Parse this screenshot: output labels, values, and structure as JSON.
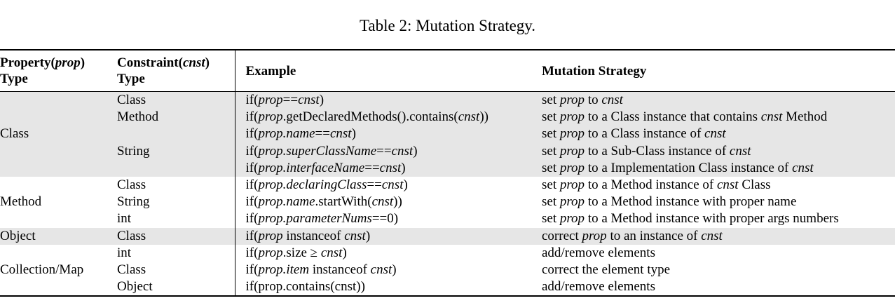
{
  "caption": "Table 2: Mutation Strategy.",
  "header": {
    "col1_line1": "Property(",
    "col1_italic": "prop",
    "col1_line1_end": ")",
    "col1_line2": "Type",
    "col2_line1": "Constraint(",
    "col2_italic": "cnst",
    "col2_line1_end": ")",
    "col2_line2": "Type",
    "col3": "Example",
    "col4": "Mutation Strategy"
  },
  "groups": [
    {
      "name": "Class",
      "shaded": true,
      "rows": [
        {
          "constraint": "Class",
          "example": [
            [
              "n",
              "if("
            ],
            [
              "i",
              "prop"
            ],
            [
              "n",
              "=="
            ],
            [
              "i",
              "cnst"
            ],
            [
              "n",
              ")"
            ]
          ],
          "strategy": [
            [
              "n",
              "set "
            ],
            [
              "i",
              "prop"
            ],
            [
              "n",
              " to "
            ],
            [
              "i",
              "cnst"
            ]
          ]
        },
        {
          "constraint": "Method",
          "example": [
            [
              "n",
              "if("
            ],
            [
              "i",
              "prop"
            ],
            [
              "n",
              ".getDeclaredMethods().contains("
            ],
            [
              "i",
              "cnst"
            ],
            [
              "n",
              "))"
            ]
          ],
          "strategy": [
            [
              "n",
              "set "
            ],
            [
              "i",
              "prop"
            ],
            [
              "n",
              " to a Class instance that contains "
            ],
            [
              "i",
              "cnst"
            ],
            [
              "n",
              " Method"
            ]
          ]
        },
        {
          "constraint": "",
          "example": [
            [
              "n",
              "if("
            ],
            [
              "i",
              "prop.name"
            ],
            [
              "n",
              "=="
            ],
            [
              "i",
              "cnst"
            ],
            [
              "n",
              ")"
            ]
          ],
          "strategy": [
            [
              "n",
              "set "
            ],
            [
              "i",
              "prop"
            ],
            [
              "n",
              " to a Class instance of "
            ],
            [
              "i",
              "cnst"
            ]
          ]
        },
        {
          "constraint": "String",
          "example": [
            [
              "n",
              "if("
            ],
            [
              "i",
              "prop.superClassName"
            ],
            [
              "n",
              "=="
            ],
            [
              "i",
              "cnst"
            ],
            [
              "n",
              ")"
            ]
          ],
          "strategy": [
            [
              "n",
              "set "
            ],
            [
              "i",
              "prop"
            ],
            [
              "n",
              " to a Sub-Class instance of "
            ],
            [
              "i",
              "cnst"
            ]
          ]
        },
        {
          "constraint": "",
          "example": [
            [
              "n",
              "if("
            ],
            [
              "i",
              "prop.interfaceName"
            ],
            [
              "n",
              "=="
            ],
            [
              "i",
              "cnst"
            ],
            [
              "n",
              ")"
            ]
          ],
          "strategy": [
            [
              "n",
              "set "
            ],
            [
              "i",
              "prop"
            ],
            [
              "n",
              " to a Implementation Class instance of "
            ],
            [
              "i",
              "cnst"
            ]
          ]
        }
      ]
    },
    {
      "name": "Method",
      "shaded": false,
      "rows": [
        {
          "constraint": "Class",
          "example": [
            [
              "n",
              "if("
            ],
            [
              "i",
              "prop.declaringClass"
            ],
            [
              "n",
              "=="
            ],
            [
              "i",
              "cnst"
            ],
            [
              "n",
              ")"
            ]
          ],
          "strategy": [
            [
              "n",
              "set "
            ],
            [
              "i",
              "prop"
            ],
            [
              "n",
              " to a Method instance of "
            ],
            [
              "i",
              "cnst"
            ],
            [
              "n",
              " Class"
            ]
          ]
        },
        {
          "constraint": "String",
          "example": [
            [
              "n",
              "if("
            ],
            [
              "i",
              "prop.name"
            ],
            [
              "n",
              ".startWith("
            ],
            [
              "i",
              "cnst"
            ],
            [
              "n",
              "))"
            ]
          ],
          "strategy": [
            [
              "n",
              "set "
            ],
            [
              "i",
              "prop"
            ],
            [
              "n",
              " to a Method instance with proper name"
            ]
          ]
        },
        {
          "constraint": "int",
          "example": [
            [
              "n",
              "if("
            ],
            [
              "i",
              "prop.parameterNums"
            ],
            [
              "n",
              "==0)"
            ]
          ],
          "strategy": [
            [
              "n",
              "set "
            ],
            [
              "i",
              "prop"
            ],
            [
              "n",
              " to a Method instance with proper args numbers"
            ]
          ]
        }
      ]
    },
    {
      "name": "Object",
      "shaded": true,
      "rows": [
        {
          "constraint": "Class",
          "example": [
            [
              "n",
              "if("
            ],
            [
              "i",
              "prop"
            ],
            [
              "n",
              " instanceof "
            ],
            [
              "i",
              "cnst"
            ],
            [
              "n",
              ")"
            ]
          ],
          "strategy": [
            [
              "n",
              "correct "
            ],
            [
              "i",
              "prop"
            ],
            [
              "n",
              " to an instance of "
            ],
            [
              "i",
              "cnst"
            ]
          ]
        }
      ]
    },
    {
      "name": "Collection/Map",
      "shaded": false,
      "rows": [
        {
          "constraint": "int",
          "example": [
            [
              "n",
              "if("
            ],
            [
              "i",
              "prop"
            ],
            [
              "n",
              ".size ≥ "
            ],
            [
              "i",
              "cnst"
            ],
            [
              "n",
              ")"
            ]
          ],
          "strategy": [
            [
              "n",
              "add/remove elements"
            ]
          ]
        },
        {
          "constraint": "Class",
          "example": [
            [
              "n",
              "if("
            ],
            [
              "i",
              "prop.item"
            ],
            [
              "n",
              " instanceof "
            ],
            [
              "i",
              "cnst"
            ],
            [
              "n",
              ")"
            ]
          ],
          "strategy": [
            [
              "n",
              "correct the element type"
            ]
          ]
        },
        {
          "constraint": "Object",
          "example": [
            [
              "n",
              "if(prop.contains(cnst))"
            ]
          ],
          "strategy": [
            [
              "n",
              "add/remove elements"
            ]
          ]
        }
      ]
    }
  ]
}
